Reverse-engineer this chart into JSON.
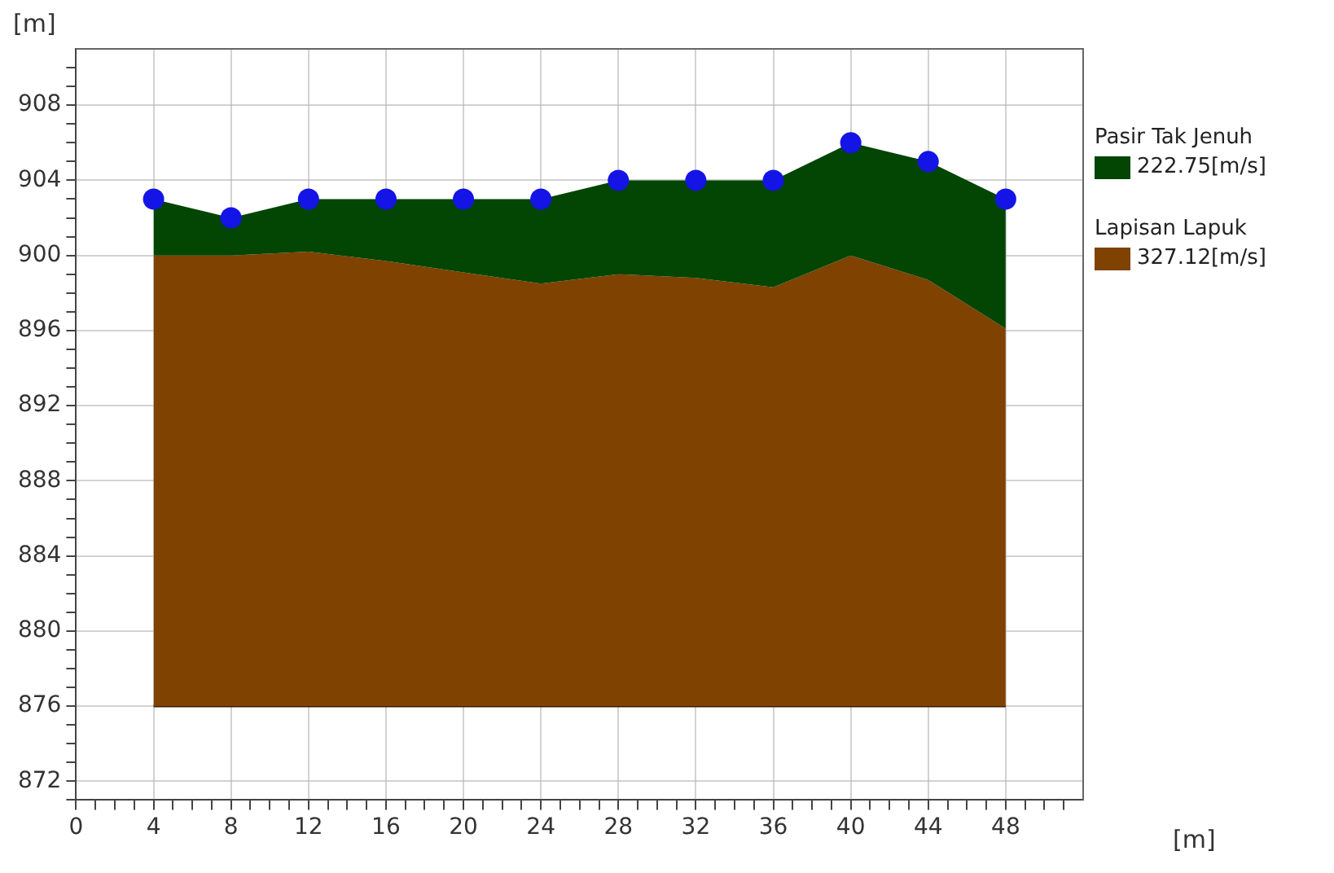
{
  "chart_data": {
    "type": "area",
    "xlabel": "[m]",
    "ylabel": "[m]",
    "xlim": [
      0,
      52
    ],
    "ylim": [
      871,
      911
    ],
    "xticks": [
      0,
      {
        "value": 1,
        "label": null
      },
      {
        "value": 2,
        "label": null
      },
      {
        "value": 3,
        "label": null
      },
      4,
      {
        "value": 5,
        "label": null
      },
      {
        "value": 6,
        "label": null
      },
      {
        "value": 7,
        "label": null
      },
      8,
      {
        "value": 9,
        "label": null
      },
      {
        "value": 10,
        "label": null
      },
      {
        "value": 11,
        "label": null
      },
      12,
      {
        "value": 13,
        "label": null
      },
      {
        "value": 14,
        "label": null
      },
      {
        "value": 15,
        "label": null
      },
      16,
      {
        "value": 17,
        "label": null
      },
      {
        "value": 18,
        "label": null
      },
      {
        "value": 19,
        "label": null
      },
      20,
      {
        "value": 21,
        "label": null
      },
      {
        "value": 22,
        "label": null
      },
      {
        "value": 23,
        "label": null
      },
      24,
      {
        "value": 25,
        "label": null
      },
      {
        "value": 26,
        "label": null
      },
      {
        "value": 27,
        "label": null
      },
      28,
      {
        "value": 29,
        "label": null
      },
      {
        "value": 30,
        "label": null
      },
      {
        "value": 31,
        "label": null
      },
      32,
      {
        "value": 33,
        "label": null
      },
      {
        "value": 34,
        "label": null
      },
      {
        "value": 35,
        "label": null
      },
      36,
      {
        "value": 37,
        "label": null
      },
      {
        "value": 38,
        "label": null
      },
      {
        "value": 39,
        "label": null
      },
      40,
      {
        "value": 41,
        "label": null
      },
      {
        "value": 42,
        "label": null
      },
      {
        "value": 43,
        "label": null
      },
      44,
      {
        "value": 45,
        "label": null
      },
      {
        "value": 46,
        "label": null
      },
      {
        "value": 47,
        "label": null
      },
      48,
      {
        "value": 49,
        "label": null
      },
      {
        "value": 50,
        "label": null
      },
      {
        "value": 51,
        "label": null
      }
    ],
    "yticks": [
      {
        "value": 871,
        "label": null
      },
      872,
      {
        "value": 873,
        "label": null
      },
      {
        "value": 874,
        "label": null
      },
      {
        "value": 875,
        "label": null
      },
      876,
      {
        "value": 877,
        "label": null
      },
      {
        "value": 878,
        "label": null
      },
      {
        "value": 879,
        "label": null
      },
      880,
      {
        "value": 881,
        "label": null
      },
      {
        "value": 882,
        "label": null
      },
      {
        "value": 883,
        "label": null
      },
      884,
      {
        "value": 885,
        "label": null
      },
      {
        "value": 886,
        "label": null
      },
      {
        "value": 887,
        "label": null
      },
      888,
      {
        "value": 889,
        "label": null
      },
      {
        "value": 890,
        "label": null
      },
      {
        "value": 891,
        "label": null
      },
      892,
      {
        "value": 893,
        "label": null
      },
      {
        "value": 894,
        "label": null
      },
      {
        "value": 895,
        "label": null
      },
      896,
      {
        "value": 897,
        "label": null
      },
      {
        "value": 898,
        "label": null
      },
      {
        "value": 899,
        "label": null
      },
      900,
      {
        "value": 901,
        "label": null
      },
      {
        "value": 902,
        "label": null
      },
      {
        "value": 903,
        "label": null
      },
      904,
      {
        "value": 905,
        "label": null
      },
      {
        "value": 906,
        "label": null
      },
      {
        "value": 907,
        "label": null
      },
      908,
      {
        "value": 909,
        "label": null
      },
      {
        "value": 910,
        "label": null
      }
    ],
    "x": [
      4,
      8,
      12,
      16,
      20,
      24,
      28,
      32,
      36,
      40,
      44,
      48
    ],
    "grid": true,
    "legend": "right",
    "series": [
      {
        "name": "Pasir Tak Jenuh\n222.75[m/s]",
        "color": "#034503",
        "values": [
          903,
          902,
          903,
          903,
          903,
          903,
          904,
          904,
          904,
          906,
          905,
          903
        ]
      },
      {
        "name": "Lapisan Lapuk\n327.12[m/s]",
        "color": "#7f4200",
        "values": [
          900,
          900,
          900.2,
          899.7,
          899.1,
          898.5,
          899,
          898.8,
          898.3,
          900,
          898.7,
          896.1
        ]
      },
      {
        "type": "line",
        "color": "#3a1e00",
        "values": [
          876,
          876,
          876,
          876,
          876,
          876,
          876,
          876,
          876,
          876,
          876,
          876
        ]
      },
      {
        "type": "scatter",
        "color": "#1414e6",
        "marker": "circle",
        "values": [
          903,
          902,
          903,
          903,
          903,
          903,
          904,
          904,
          904,
          906,
          905,
          903
        ]
      }
    ]
  }
}
